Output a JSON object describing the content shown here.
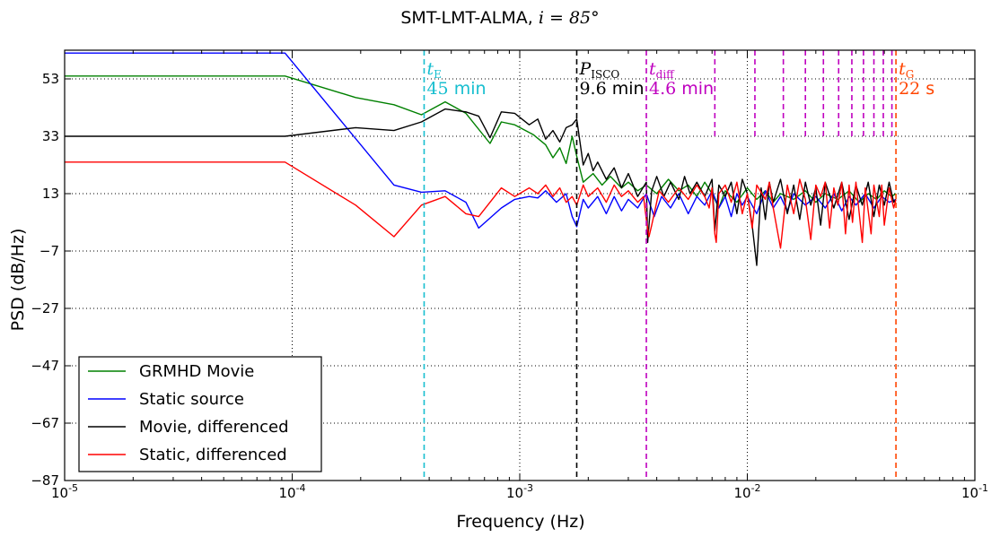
{
  "chart_data": {
    "type": "line",
    "title": "SMT-LMT-ALMA, ",
    "title_math": "i = 85°",
    "xlabel": "Frequency (Hz)",
    "ylabel": "PSD (dB/Hz)",
    "xscale": "log",
    "xlim": [
      1e-05,
      0.1
    ],
    "ylim": [
      -87,
      63
    ],
    "x_ticks": [
      {
        "value": 1e-05,
        "base": "10",
        "exp": "-5"
      },
      {
        "value": 0.0001,
        "base": "10",
        "exp": "-4"
      },
      {
        "value": 0.001,
        "base": "10",
        "exp": "-3"
      },
      {
        "value": 0.01,
        "base": "10",
        "exp": "-2"
      },
      {
        "value": 0.1,
        "base": "10",
        "exp": "-1"
      }
    ],
    "y_ticks": [
      53,
      33,
      13,
      -7,
      -27,
      -47,
      -67,
      -87
    ],
    "y_tick_labels": [
      "53",
      "33",
      "13",
      "−7",
      "−27",
      "−47",
      "−67",
      "−87"
    ],
    "grid": true,
    "legend_position": "lower-left",
    "series": [
      {
        "name": "GRMHD Movie",
        "color": "#008000",
        "points": [
          [
            1e-05,
            54
          ],
          [
            9.3e-05,
            54
          ],
          [
            0.00019,
            46.5
          ],
          [
            0.00028,
            44
          ],
          [
            0.00037,
            40.5
          ],
          [
            0.00047,
            45
          ],
          [
            0.00058,
            41
          ],
          [
            0.00074,
            30.5
          ],
          [
            0.00083,
            38
          ],
          [
            0.00095,
            37
          ],
          [
            0.00115,
            33.5
          ],
          [
            0.0013,
            30
          ],
          [
            0.0014,
            25.5
          ],
          [
            0.0015,
            29
          ],
          [
            0.0016,
            23.5
          ],
          [
            0.0017,
            33
          ],
          [
            0.00178,
            26
          ],
          [
            0.0019,
            17
          ],
          [
            0.0021,
            20
          ],
          [
            0.0023,
            16
          ],
          [
            0.0025,
            19
          ],
          [
            0.0028,
            15
          ],
          [
            0.003,
            17
          ],
          [
            0.0033,
            14
          ],
          [
            0.0036,
            16
          ],
          [
            0.004,
            13
          ],
          [
            0.0045,
            18
          ],
          [
            0.005,
            14
          ],
          [
            0.0055,
            16
          ],
          [
            0.006,
            12
          ],
          [
            0.0065,
            17
          ],
          [
            0.007,
            13
          ],
          [
            0.0075,
            8
          ],
          [
            0.008,
            14
          ],
          [
            0.009,
            10
          ],
          [
            0.01,
            15
          ],
          [
            0.011,
            11
          ],
          [
            0.012,
            14
          ],
          [
            0.013,
            10
          ],
          [
            0.014,
            13
          ],
          [
            0.016,
            11
          ],
          [
            0.018,
            14
          ],
          [
            0.02,
            10
          ],
          [
            0.022,
            13
          ],
          [
            0.025,
            11
          ],
          [
            0.028,
            14
          ],
          [
            0.031,
            10
          ],
          [
            0.034,
            13
          ],
          [
            0.037,
            11
          ],
          [
            0.04,
            14
          ],
          [
            0.043,
            12
          ],
          [
            0.045,
            13
          ]
        ]
      },
      {
        "name": "Static source",
        "color": "#0000ff",
        "points": [
          [
            1e-05,
            62
          ],
          [
            9.3e-05,
            62
          ],
          [
            0.00028,
            16
          ],
          [
            0.00037,
            13.5
          ],
          [
            0.00047,
            14
          ],
          [
            0.00058,
            10
          ],
          [
            0.00066,
            1
          ],
          [
            0.00083,
            8
          ],
          [
            0.00095,
            11
          ],
          [
            0.0011,
            12
          ],
          [
            0.0012,
            11.5
          ],
          [
            0.0013,
            14
          ],
          [
            0.00145,
            10
          ],
          [
            0.0016,
            13
          ],
          [
            0.0017,
            5
          ],
          [
            0.00178,
            1.5
          ],
          [
            0.0019,
            11
          ],
          [
            0.002,
            8
          ],
          [
            0.0022,
            12
          ],
          [
            0.0024,
            6
          ],
          [
            0.0026,
            12
          ],
          [
            0.0028,
            7
          ],
          [
            0.003,
            11
          ],
          [
            0.0033,
            8
          ],
          [
            0.0036,
            13
          ],
          [
            0.0039,
            5
          ],
          [
            0.0042,
            12
          ],
          [
            0.0046,
            8
          ],
          [
            0.005,
            13
          ],
          [
            0.0055,
            6
          ],
          [
            0.006,
            12
          ],
          [
            0.0065,
            9
          ],
          [
            0.007,
            14
          ],
          [
            0.0075,
            8
          ],
          [
            0.008,
            12
          ],
          [
            0.0085,
            5
          ],
          [
            0.009,
            13
          ],
          [
            0.0095,
            9
          ],
          [
            0.01,
            12
          ],
          [
            0.011,
            6
          ],
          [
            0.012,
            14
          ],
          [
            0.013,
            8
          ],
          [
            0.014,
            12
          ],
          [
            0.015,
            7
          ],
          [
            0.016,
            13
          ],
          [
            0.018,
            9
          ],
          [
            0.02,
            12
          ],
          [
            0.022,
            8
          ],
          [
            0.024,
            13
          ],
          [
            0.026,
            7
          ],
          [
            0.028,
            12
          ],
          [
            0.03,
            9
          ],
          [
            0.033,
            13
          ],
          [
            0.036,
            8
          ],
          [
            0.039,
            12
          ],
          [
            0.042,
            10
          ],
          [
            0.045,
            11
          ]
        ]
      },
      {
        "name": "Movie, differenced",
        "color": "#000000",
        "points": [
          [
            1e-05,
            33
          ],
          [
            9.3e-05,
            33
          ],
          [
            0.00019,
            36
          ],
          [
            0.00028,
            35
          ],
          [
            0.00037,
            38
          ],
          [
            0.00047,
            42.5
          ],
          [
            0.00058,
            41.5
          ],
          [
            0.00066,
            40
          ],
          [
            0.00074,
            32.5
          ],
          [
            0.00083,
            41.5
          ],
          [
            0.00095,
            41
          ],
          [
            0.0011,
            37
          ],
          [
            0.0012,
            39
          ],
          [
            0.0013,
            32
          ],
          [
            0.0014,
            35
          ],
          [
            0.0015,
            31
          ],
          [
            0.0016,
            36
          ],
          [
            0.0017,
            37
          ],
          [
            0.00178,
            39
          ],
          [
            0.0019,
            23
          ],
          [
            0.002,
            27
          ],
          [
            0.0021,
            21
          ],
          [
            0.0022,
            24
          ],
          [
            0.0024,
            18
          ],
          [
            0.0026,
            22
          ],
          [
            0.0028,
            15
          ],
          [
            0.003,
            20
          ],
          [
            0.0033,
            12
          ],
          [
            0.0036,
            17
          ],
          [
            0.00365,
            -4
          ],
          [
            0.0038,
            14
          ],
          [
            0.004,
            19
          ],
          [
            0.0043,
            12
          ],
          [
            0.0046,
            17
          ],
          [
            0.005,
            11
          ],
          [
            0.0053,
            19
          ],
          [
            0.0056,
            13
          ],
          [
            0.006,
            17
          ],
          [
            0.0065,
            12
          ],
          [
            0.007,
            18
          ],
          [
            0.0072,
            0
          ],
          [
            0.0075,
            16
          ],
          [
            0.008,
            12
          ],
          [
            0.0085,
            17
          ],
          [
            0.009,
            6
          ],
          [
            0.0095,
            18
          ],
          [
            0.01,
            13
          ],
          [
            0.0105,
            2
          ],
          [
            0.011,
            -12
          ],
          [
            0.0115,
            15
          ],
          [
            0.012,
            4
          ],
          [
            0.0125,
            17
          ],
          [
            0.013,
            10
          ],
          [
            0.014,
            18
          ],
          [
            0.015,
            6
          ],
          [
            0.016,
            16
          ],
          [
            0.017,
            4
          ],
          [
            0.018,
            17
          ],
          [
            0.019,
            9
          ],
          [
            0.02,
            15
          ],
          [
            0.021,
            2
          ],
          [
            0.022,
            17
          ],
          [
            0.024,
            8
          ],
          [
            0.026,
            17
          ],
          [
            0.028,
            4
          ],
          [
            0.03,
            16
          ],
          [
            0.032,
            9
          ],
          [
            0.034,
            17
          ],
          [
            0.036,
            5
          ],
          [
            0.038,
            16
          ],
          [
            0.04,
            9
          ],
          [
            0.042,
            17
          ],
          [
            0.044,
            10
          ],
          [
            0.045,
            11
          ]
        ]
      },
      {
        "name": "Static, differenced",
        "color": "#ff0000",
        "points": [
          [
            1e-05,
            24
          ],
          [
            9.3e-05,
            24
          ],
          [
            0.00019,
            9
          ],
          [
            0.00028,
            -2
          ],
          [
            0.00037,
            9
          ],
          [
            0.00047,
            12
          ],
          [
            0.00058,
            6
          ],
          [
            0.00066,
            5
          ],
          [
            0.00083,
            15
          ],
          [
            0.00095,
            12
          ],
          [
            0.0011,
            15
          ],
          [
            0.0012,
            13
          ],
          [
            0.0013,
            16
          ],
          [
            0.0014,
            12
          ],
          [
            0.0015,
            15
          ],
          [
            0.0016,
            10
          ],
          [
            0.0017,
            12
          ],
          [
            0.00178,
            9
          ],
          [
            0.0019,
            16
          ],
          [
            0.002,
            12
          ],
          [
            0.0022,
            15
          ],
          [
            0.0024,
            10
          ],
          [
            0.0026,
            16
          ],
          [
            0.0028,
            12
          ],
          [
            0.003,
            14
          ],
          [
            0.0033,
            10
          ],
          [
            0.0035,
            12
          ],
          [
            0.0036,
            4
          ],
          [
            0.0037,
            -2
          ],
          [
            0.0038,
            2
          ],
          [
            0.0041,
            14
          ],
          [
            0.0045,
            10
          ],
          [
            0.005,
            15
          ],
          [
            0.0055,
            11
          ],
          [
            0.006,
            16
          ],
          [
            0.0065,
            12
          ],
          [
            0.0068,
            8
          ],
          [
            0.007,
            15
          ],
          [
            0.0072,
            -1
          ],
          [
            0.0073,
            -4
          ],
          [
            0.0075,
            13
          ],
          [
            0.008,
            16
          ],
          [
            0.0085,
            10
          ],
          [
            0.009,
            17
          ],
          [
            0.0095,
            6
          ],
          [
            0.01,
            13
          ],
          [
            0.0105,
            1
          ],
          [
            0.011,
            16
          ],
          [
            0.012,
            11
          ],
          [
            0.0125,
            17
          ],
          [
            0.013,
            8
          ],
          [
            0.014,
            -6
          ],
          [
            0.015,
            16
          ],
          [
            0.016,
            6
          ],
          [
            0.017,
            18
          ],
          [
            0.018,
            11
          ],
          [
            0.019,
            -3
          ],
          [
            0.02,
            16
          ],
          [
            0.021,
            12
          ],
          [
            0.022,
            17
          ],
          [
            0.023,
            1
          ],
          [
            0.024,
            15
          ],
          [
            0.025,
            9
          ],
          [
            0.026,
            17
          ],
          [
            0.027,
            -1
          ],
          [
            0.028,
            16
          ],
          [
            0.029,
            3
          ],
          [
            0.03,
            17
          ],
          [
            0.032,
            -4
          ],
          [
            0.033,
            15
          ],
          [
            0.035,
            -1
          ],
          [
            0.036,
            16
          ],
          [
            0.038,
            5
          ],
          [
            0.039,
            16
          ],
          [
            0.04,
            2
          ],
          [
            0.042,
            15
          ],
          [
            0.044,
            8
          ],
          [
            0.045,
            11
          ]
        ]
      }
    ],
    "vlines": [
      {
        "x": 0.00038,
        "color": "#17becf",
        "label_sym": "t",
        "label_sub": "E",
        "label_num": "45",
        "label_unit": "min"
      },
      {
        "x": 0.00178,
        "color": "#000000",
        "label_sym": "P",
        "label_sub": "ISCO",
        "label_num": "9.6",
        "label_unit": "min"
      },
      {
        "x": 0.0036,
        "color": "#bf00bf",
        "label_sym": "t",
        "label_sub": "diff",
        "label_num": "4.6",
        "label_unit": "min"
      },
      {
        "x": 0.045,
        "color": "#ff4500",
        "label_sym": "t",
        "label_sub": "G",
        "label_num": "22",
        "label_unit": "s"
      }
    ],
    "harmonics": {
      "color": "#bf00bf",
      "x": [
        0.0072,
        0.0108,
        0.0144,
        0.018,
        0.0216,
        0.0252,
        0.0288,
        0.0324,
        0.036,
        0.0396,
        0.0432
      ],
      "ymin": 33,
      "ymax": 63
    }
  }
}
